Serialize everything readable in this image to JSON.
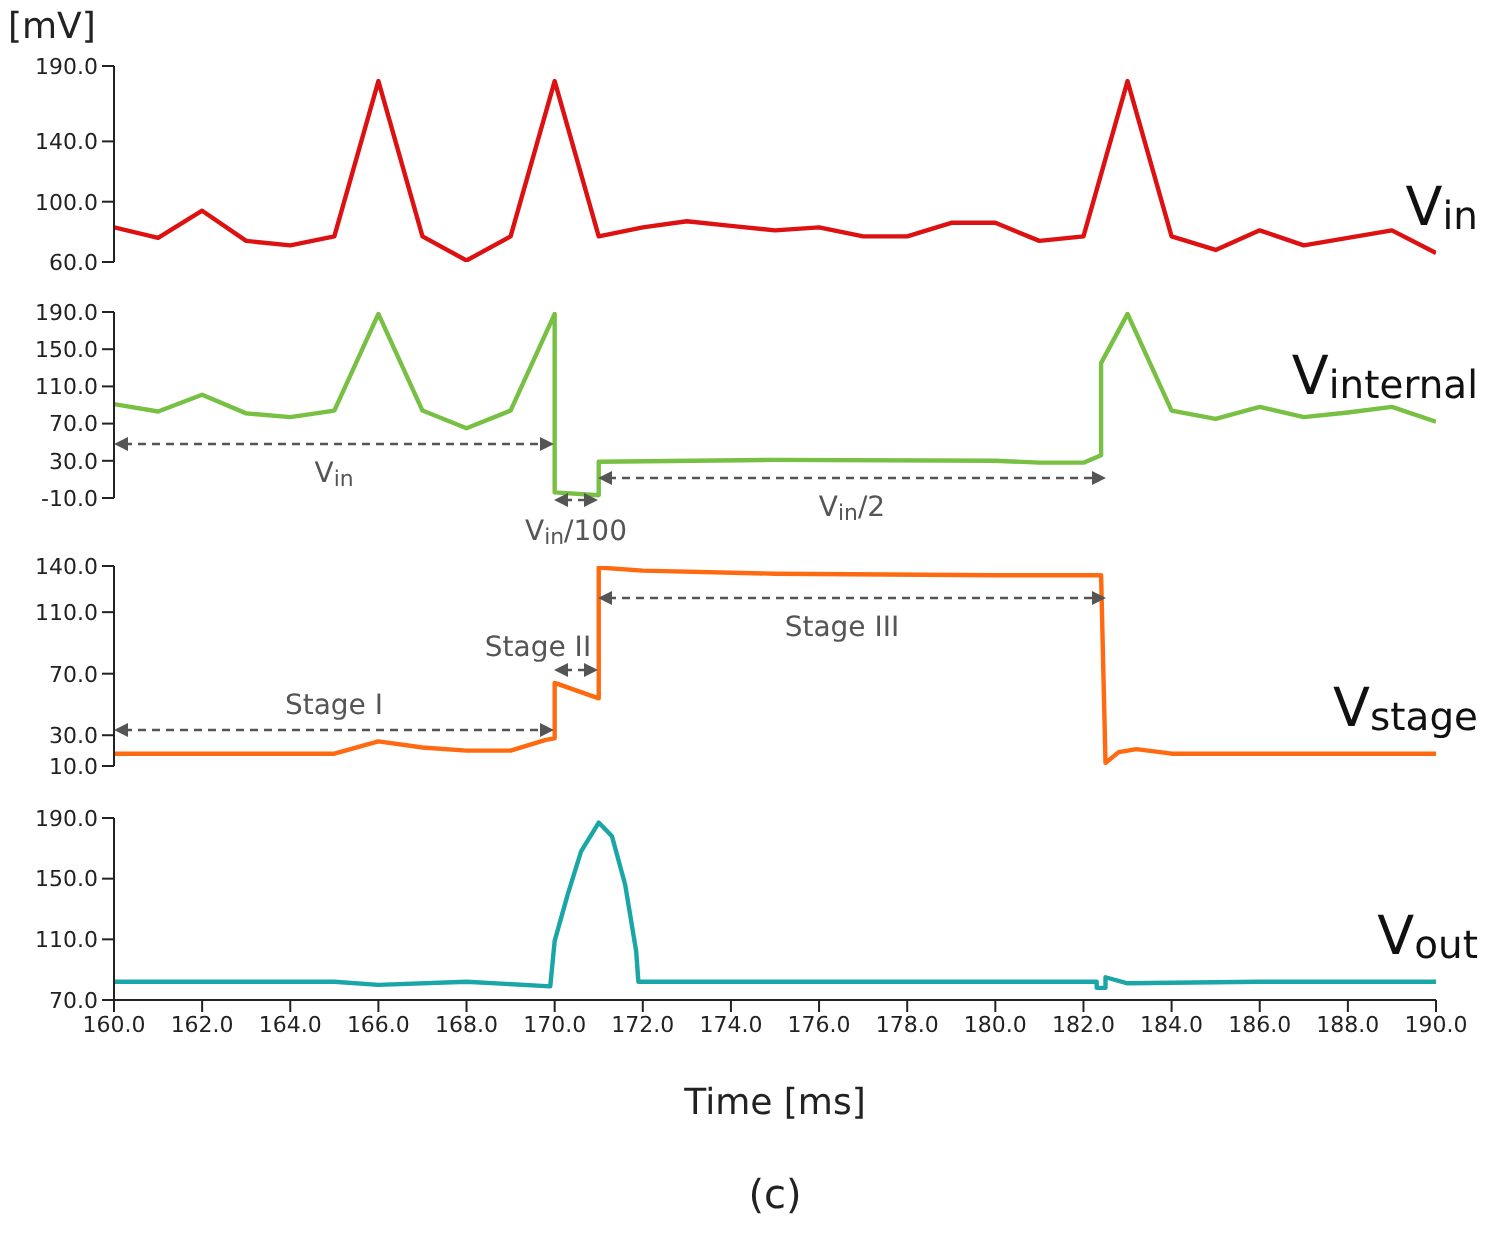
{
  "chart_data": [
    {
      "type": "line",
      "ylabel": "[mV]",
      "xlim": [
        160,
        190
      ],
      "ylim": [
        60,
        190
      ],
      "yticks": [
        {
          "value": 60,
          "label": "60.0"
        },
        {
          "value": 100,
          "label": "100.0"
        },
        {
          "value": 140,
          "label": "140.0"
        },
        {
          "value": 190,
          "label": "190.0"
        }
      ],
      "tick_labels": "y",
      "marker": "none",
      "line_style": "solid",
      "series": [
        {
          "name": "V$_{in}$",
          "color": "#dd1111",
          "x": [
            160,
            161,
            162,
            163,
            164,
            165,
            166,
            167,
            168,
            169,
            170,
            171,
            172,
            173,
            174,
            175,
            176,
            177,
            178,
            179,
            180,
            181,
            182,
            183,
            184,
            185,
            186,
            187,
            188,
            189,
            190
          ],
          "values": [
            83,
            76,
            94,
            74,
            71,
            77,
            180,
            77,
            61,
            77,
            180,
            77,
            83,
            87,
            84,
            81,
            83,
            77,
            77,
            86,
            86,
            74,
            77,
            180,
            77,
            68,
            81,
            71,
            76,
            81,
            66
          ]
        }
      ]
    },
    {
      "type": "line",
      "xlim": [
        160,
        190
      ],
      "ylim": [
        -10,
        190
      ],
      "yticks": [
        {
          "value": -10,
          "label": "-10.0"
        },
        {
          "value": 30,
          "label": "30.0"
        },
        {
          "value": 70,
          "label": "70.0"
        },
        {
          "value": 110,
          "label": "110.0"
        },
        {
          "value": 150,
          "label": "150.0"
        },
        {
          "value": 190,
          "label": "190.0"
        }
      ],
      "tick_labels": "y",
      "marker": "none",
      "line_style": "solid",
      "series": [
        {
          "name": "V$_{internal}$",
          "color": "#77c043",
          "x": [
            160,
            161,
            162,
            163,
            164,
            165,
            166,
            167,
            168,
            169,
            170,
            170,
            171,
            171,
            175,
            180,
            181,
            182,
            182.4,
            182.4,
            183,
            184,
            185,
            186,
            187,
            188,
            189,
            190
          ],
          "values": [
            91,
            83,
            101,
            81,
            77,
            84,
            188,
            84,
            65,
            84,
            188,
            -4,
            -7,
            29,
            31,
            30,
            28,
            28,
            36,
            135,
            188,
            84,
            75,
            88,
            77,
            82,
            88,
            72
          ]
        }
      ],
      "annotations": [
        "V$_{in}$",
        "V$_{in}$/100",
        "V$_{in}$/2"
      ]
    },
    {
      "type": "line",
      "xlim": [
        160,
        190
      ],
      "ylim": [
        10,
        140
      ],
      "yticks": [
        {
          "value": 10,
          "label": "10.0"
        },
        {
          "value": 30,
          "label": "30.0"
        },
        {
          "value": 70,
          "label": "70.0"
        },
        {
          "value": 110,
          "label": "110.0"
        },
        {
          "value": 140,
          "label": "140.0"
        }
      ],
      "tick_labels": "y",
      "marker": "none",
      "line_style": "solid",
      "series": [
        {
          "name": "V$_{stage}$",
          "color": "#ff6a10",
          "x": [
            160,
            162,
            164,
            165,
            166,
            167,
            168,
            169,
            169.8,
            170,
            170,
            171,
            171,
            172,
            175,
            180,
            182.4,
            182.5,
            182.8,
            183.2,
            184,
            187,
            190
          ],
          "values": [
            18,
            18,
            18,
            18,
            26,
            22,
            20,
            20,
            27,
            28,
            64,
            54,
            139,
            137,
            135,
            134,
            134,
            12,
            19,
            21,
            18,
            18,
            18
          ]
        }
      ],
      "annotations": [
        "Stage I",
        "Stage II",
        "Stage III"
      ]
    },
    {
      "type": "line",
      "xlabel": "Time [ms]",
      "xlim": [
        160,
        190
      ],
      "ylim": [
        70,
        190
      ],
      "xticks": [
        {
          "value": 160,
          "label": "160.0"
        },
        {
          "value": 162,
          "label": "162.0"
        },
        {
          "value": 164,
          "label": "164.0"
        },
        {
          "value": 166,
          "label": "166.0"
        },
        {
          "value": 168,
          "label": "168.0"
        },
        {
          "value": 170,
          "label": "170.0"
        },
        {
          "value": 172,
          "label": "172.0"
        },
        {
          "value": 174,
          "label": "174.0"
        },
        {
          "value": 176,
          "label": "176.0"
        },
        {
          "value": 178,
          "label": "178.0"
        },
        {
          "value": 180,
          "label": "180.0"
        },
        {
          "value": 182,
          "label": "182.0"
        },
        {
          "value": 184,
          "label": "184.0"
        },
        {
          "value": 186,
          "label": "186.0"
        },
        {
          "value": 188,
          "label": "188.0"
        },
        {
          "value": 190,
          "label": "190.0"
        }
      ],
      "yticks": [
        {
          "value": 70,
          "label": "70.0"
        },
        {
          "value": 110,
          "label": "110.0"
        },
        {
          "value": 150,
          "label": "150.0"
        },
        {
          "value": 190,
          "label": "190.0"
        }
      ],
      "marker": "none",
      "line_style": "solid",
      "series": [
        {
          "name": "V$_{out}$",
          "color": "#1aa6a6",
          "x": [
            160,
            163,
            165,
            166,
            168,
            169.9,
            170,
            170.3,
            170.6,
            171,
            171.3,
            171.6,
            171.85,
            171.9,
            176,
            182.3,
            182.3,
            182.5,
            182.5,
            183,
            186,
            190
          ],
          "values": [
            82,
            82,
            82,
            80,
            82,
            79,
            109,
            140,
            168,
            187,
            178,
            146,
            102,
            82,
            82,
            82,
            78,
            78,
            85,
            81,
            82,
            82
          ]
        }
      ],
      "annotations": [
        "(c)"
      ]
    }
  ]
}
